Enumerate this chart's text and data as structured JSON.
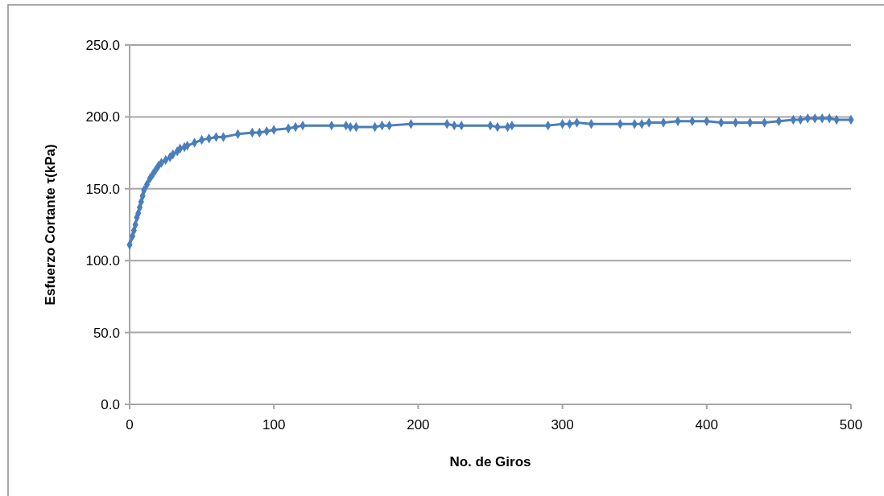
{
  "chart_data": {
    "type": "line",
    "xlabel": "No. de Giros",
    "ylabel": "Esfuerzo Cortante τ(kPa)",
    "x": [
      0,
      2,
      3,
      4,
      5,
      6,
      7,
      8,
      9,
      10,
      12,
      14,
      16,
      18,
      20,
      22,
      25,
      28,
      30,
      33,
      35,
      38,
      40,
      45,
      50,
      55,
      60,
      65,
      75,
      85,
      90,
      95,
      100,
      110,
      115,
      120,
      140,
      150,
      153,
      157,
      170,
      175,
      180,
      195,
      220,
      225,
      230,
      250,
      255,
      262,
      265,
      290,
      300,
      305,
      310,
      320,
      340,
      350,
      355,
      360,
      370,
      380,
      390,
      400,
      410,
      420,
      430,
      440,
      450,
      460,
      465,
      470,
      475,
      480,
      485,
      490,
      500
    ],
    "series": [
      {
        "color": "#4a7ebb",
        "values": [
          111,
          117,
          121,
          125,
          130,
          133,
          137,
          141,
          145,
          149,
          153,
          157,
          160,
          163,
          166,
          168,
          170,
          172,
          174,
          176,
          178,
          179,
          180,
          182,
          184,
          185,
          186,
          186,
          188,
          189,
          189,
          190,
          191,
          192,
          193,
          194,
          194,
          194,
          193,
          193,
          193,
          194,
          194,
          195,
          195,
          194,
          194,
          194,
          193,
          193,
          194,
          194,
          195,
          195,
          196,
          195,
          195,
          195,
          195,
          196,
          196,
          197,
          197,
          197,
          196,
          196,
          196,
          196,
          197,
          198,
          198,
          199,
          199,
          199,
          199,
          198,
          198
        ]
      }
    ],
    "xlim": [
      0,
      500
    ],
    "xticks": [
      0,
      100,
      200,
      300,
      400,
      500
    ],
    "ylim": [
      0,
      250
    ],
    "yticks": [
      {
        "value": 0,
        "label": "0.0"
      },
      {
        "value": 50,
        "label": "50.0"
      },
      {
        "value": 100,
        "label": "100.0"
      },
      {
        "value": 150,
        "label": "150.0"
      },
      {
        "value": 200,
        "label": "200.0"
      },
      {
        "value": 250,
        "label": "250.0"
      }
    ],
    "grid": "y",
    "marker": "diamond",
    "line_style": "solid"
  }
}
